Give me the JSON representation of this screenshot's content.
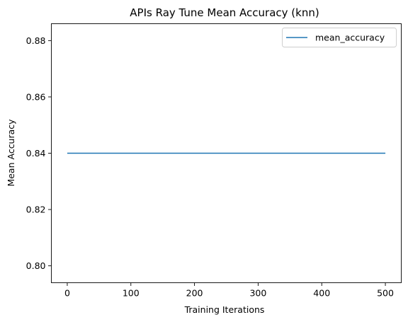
{
  "chart_data": {
    "type": "line",
    "title": "APIs Ray Tune Mean Accuracy (knn)",
    "xlabel": "Training Iterations",
    "ylabel": "Mean Accuracy",
    "xlim": [
      -25,
      525
    ],
    "ylim": [
      0.794,
      0.886
    ],
    "xticks": [
      0,
      100,
      200,
      300,
      400,
      500
    ],
    "xtick_labels": [
      "0",
      "100",
      "200",
      "300",
      "400",
      "500"
    ],
    "yticks": [
      0.8,
      0.82,
      0.84,
      0.86,
      0.88
    ],
    "ytick_labels": [
      "0.80",
      "0.82",
      "0.84",
      "0.86",
      "0.88"
    ],
    "grid": false,
    "legend": "top-right",
    "series": [
      {
        "name": "mean_accuracy",
        "color": "#1f77b4",
        "x": [
          0,
          500
        ],
        "y": [
          0.84,
          0.84
        ]
      }
    ]
  }
}
